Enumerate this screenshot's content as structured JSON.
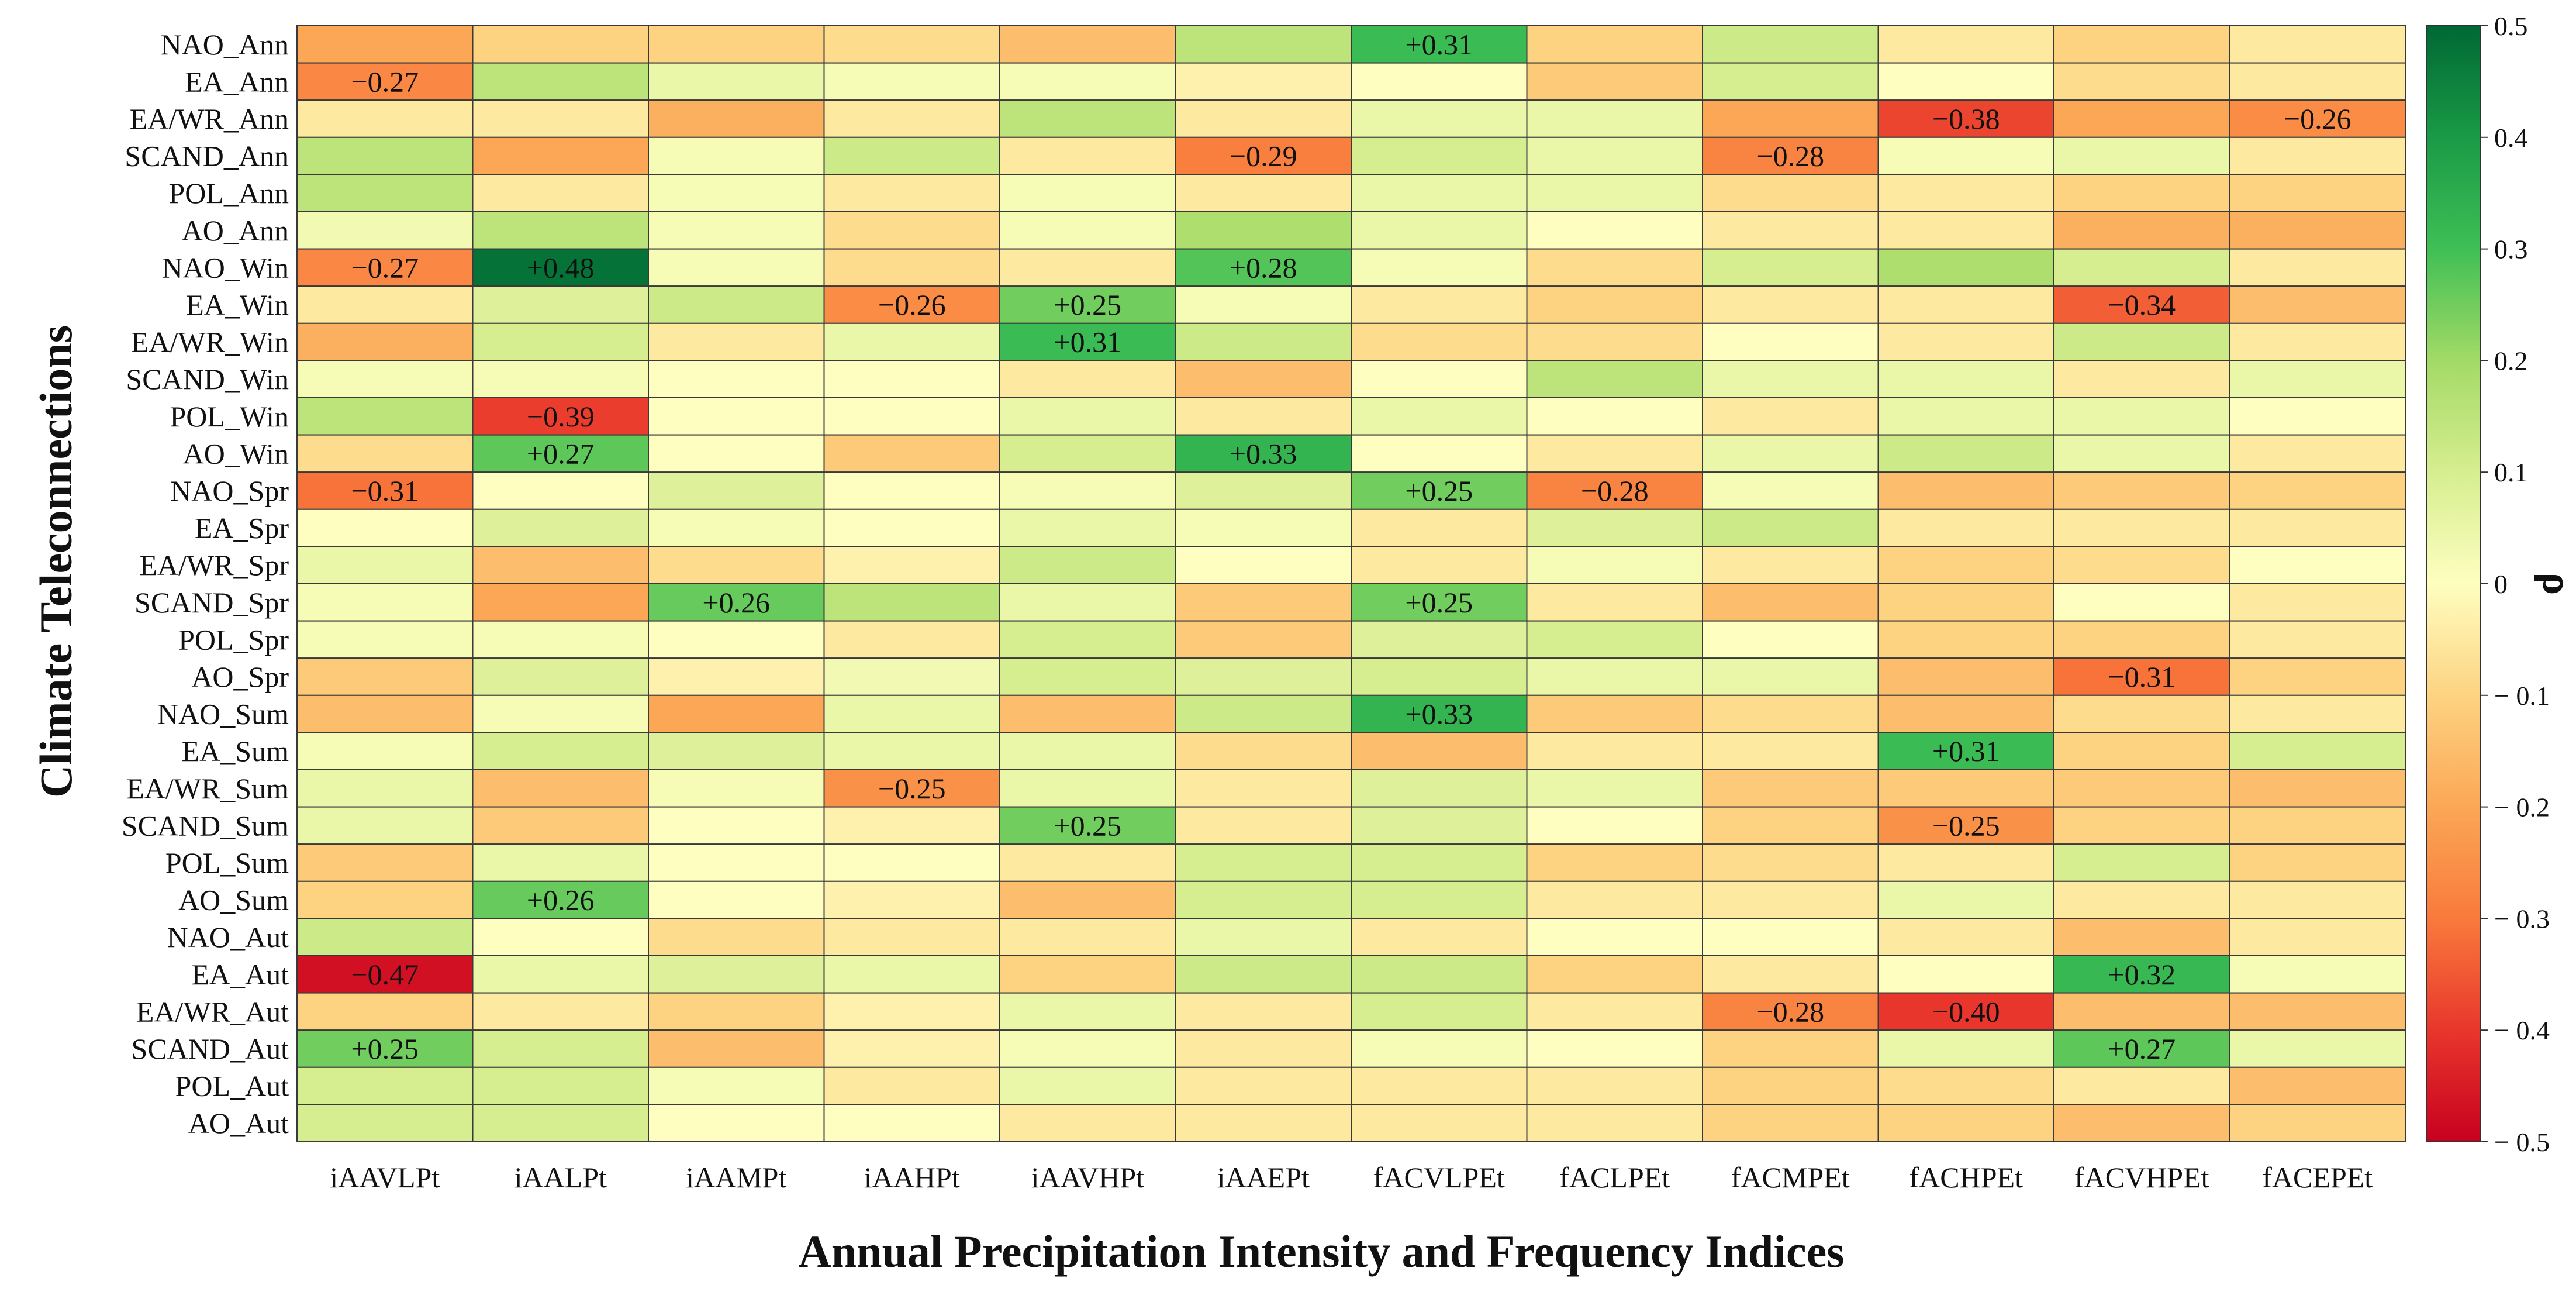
{
  "chart_data": {
    "type": "heatmap",
    "xlabel": "Annual Precipitation Intensity and Frequency Indices",
    "ylabel": "Climate Teleconnections",
    "colorbar_label": "ρ",
    "colorbar_range": [
      -0.5,
      0.5
    ],
    "colorbar_ticks": [
      0.5,
      0.4,
      0.3,
      0.2,
      0.1,
      0,
      -0.1,
      -0.2,
      -0.3,
      -0.4,
      -0.5
    ],
    "colorbar_tick_labels": [
      "0.5",
      "0.4",
      "0.3",
      "0.2",
      "0.1",
      "0",
      "− 0.1",
      "− 0.2",
      "− 0.3",
      "− 0.4",
      "− 0.5"
    ],
    "x_categories": [
      "iAAVLPt",
      "iAALPt",
      "iAAMPt",
      "iAAHPt",
      "iAAVHPt",
      "iAAEPt",
      "fACVLPEt",
      "fACLPEt",
      "fACMPEt",
      "fACHPEt",
      "fACVHPEt",
      "fACEPEt"
    ],
    "y_categories": [
      "NAO_Ann",
      "EA_Ann",
      "EA/WR_Ann",
      "SCAND_Ann",
      "POL_Ann",
      "AO_Ann",
      "NAO_Win",
      "EA_Win",
      "EA/WR_Win",
      "SCAND_Win",
      "POL_Win",
      "AO_Win",
      "NAO_Spr",
      "EA_Spr",
      "EA/WR_Spr",
      "SCAND_Spr",
      "POL_Spr",
      "AO_Spr",
      "NAO_Sum",
      "EA_Sum",
      "EA/WR_Sum",
      "SCAND_Sum",
      "POL_Sum",
      "AO_Sum",
      "NAO_Aut",
      "EA_Aut",
      "EA/WR_Aut",
      "SCAND_Aut",
      "POL_Aut",
      "AO_Aut"
    ],
    "values": [
      [
        -0.2,
        -0.1,
        -0.1,
        -0.08,
        -0.15,
        0.15,
        0.31,
        -0.1,
        0.12,
        -0.05,
        -0.1,
        -0.05
      ],
      [
        -0.27,
        0.15,
        0.05,
        0.02,
        0.02,
        -0.03,
        0.0,
        -0.12,
        0.1,
        0.0,
        -0.08,
        -0.05
      ],
      [
        -0.05,
        -0.05,
        -0.18,
        -0.05,
        0.15,
        -0.05,
        0.05,
        0.05,
        -0.2,
        -0.38,
        -0.2,
        -0.26
      ],
      [
        0.15,
        -0.2,
        0.02,
        0.12,
        -0.05,
        -0.29,
        0.1,
        0.05,
        -0.28,
        0.02,
        0.05,
        -0.05
      ],
      [
        0.15,
        -0.05,
        0.02,
        -0.05,
        0.02,
        -0.05,
        0.05,
        0.05,
        -0.08,
        -0.05,
        -0.1,
        -0.1
      ],
      [
        0.03,
        0.15,
        0.02,
        -0.08,
        0.02,
        0.18,
        0.05,
        0.0,
        -0.05,
        -0.05,
        -0.18,
        -0.18
      ],
      [
        -0.27,
        0.48,
        0.02,
        -0.08,
        -0.05,
        0.28,
        0.02,
        -0.08,
        0.1,
        0.18,
        0.1,
        -0.05
      ],
      [
        -0.05,
        0.08,
        0.12,
        -0.26,
        0.25,
        0.02,
        -0.05,
        -0.1,
        -0.05,
        -0.05,
        -0.34,
        -0.15
      ],
      [
        -0.18,
        0.1,
        -0.05,
        0.05,
        0.31,
        0.12,
        -0.08,
        -0.08,
        0.0,
        -0.05,
        0.12,
        -0.05
      ],
      [
        0.02,
        0.02,
        0.0,
        0.0,
        -0.05,
        -0.15,
        0.0,
        0.15,
        0.05,
        0.05,
        -0.05,
        0.05
      ],
      [
        0.15,
        -0.39,
        0.0,
        0.0,
        0.05,
        -0.05,
        0.05,
        0.0,
        -0.05,
        0.05,
        0.05,
        0.0
      ],
      [
        -0.08,
        0.27,
        0.0,
        -0.12,
        0.1,
        0.33,
        0.0,
        -0.05,
        0.05,
        0.12,
        0.05,
        -0.05
      ],
      [
        -0.31,
        0.0,
        0.08,
        0.0,
        0.02,
        0.08,
        0.25,
        -0.28,
        0.02,
        -0.15,
        -0.12,
        -0.1
      ],
      [
        0.0,
        0.08,
        0.02,
        0.0,
        0.05,
        0.02,
        -0.05,
        0.08,
        0.12,
        -0.05,
        -0.05,
        -0.05
      ],
      [
        0.05,
        -0.15,
        -0.08,
        -0.03,
        0.12,
        0.0,
        -0.05,
        0.02,
        -0.05,
        -0.1,
        -0.08,
        0.0
      ],
      [
        0.02,
        -0.2,
        0.26,
        0.15,
        0.05,
        -0.12,
        0.25,
        -0.05,
        -0.15,
        -0.1,
        0.0,
        -0.05
      ],
      [
        0.02,
        0.02,
        0.0,
        -0.05,
        0.1,
        -0.12,
        0.08,
        0.1,
        0.0,
        -0.1,
        -0.1,
        -0.05
      ],
      [
        -0.12,
        0.08,
        -0.03,
        0.03,
        0.1,
        0.08,
        0.1,
        0.05,
        0.05,
        -0.15,
        -0.31,
        -0.1
      ],
      [
        -0.15,
        0.02,
        -0.2,
        0.05,
        -0.15,
        0.12,
        0.33,
        -0.12,
        -0.08,
        -0.15,
        -0.08,
        -0.05
      ],
      [
        0.02,
        0.1,
        0.08,
        0.05,
        0.05,
        -0.08,
        -0.15,
        -0.05,
        -0.05,
        0.31,
        -0.1,
        0.1
      ],
      [
        0.05,
        -0.15,
        0.02,
        -0.25,
        0.05,
        -0.05,
        0.08,
        0.05,
        -0.12,
        -0.12,
        -0.12,
        -0.15
      ],
      [
        0.05,
        -0.12,
        0.0,
        -0.03,
        0.25,
        -0.05,
        0.08,
        0.0,
        -0.1,
        -0.25,
        -0.1,
        -0.1
      ],
      [
        -0.12,
        0.05,
        0.0,
        0.0,
        -0.05,
        0.1,
        0.1,
        -0.1,
        -0.08,
        -0.05,
        0.1,
        -0.1
      ],
      [
        -0.1,
        0.26,
        0.0,
        -0.03,
        -0.15,
        0.1,
        0.1,
        -0.05,
        -0.05,
        0.05,
        -0.05,
        -0.05
      ],
      [
        0.12,
        0.0,
        -0.08,
        -0.05,
        -0.05,
        0.05,
        -0.05,
        0.0,
        0.0,
        -0.05,
        -0.15,
        -0.05
      ],
      [
        -0.47,
        0.05,
        0.08,
        0.05,
        -0.1,
        0.12,
        0.12,
        -0.1,
        -0.05,
        0.0,
        0.32,
        0.02
      ],
      [
        -0.1,
        -0.05,
        -0.1,
        -0.03,
        0.05,
        -0.05,
        0.1,
        -0.05,
        -0.28,
        -0.4,
        -0.15,
        -0.15
      ],
      [
        0.25,
        0.1,
        -0.15,
        -0.03,
        0.02,
        -0.05,
        0.02,
        0.0,
        -0.1,
        0.05,
        0.27,
        0.05
      ],
      [
        0.1,
        0.1,
        0.02,
        -0.05,
        0.05,
        -0.05,
        -0.05,
        -0.05,
        -0.1,
        -0.08,
        -0.05,
        -0.15
      ],
      [
        0.1,
        0.1,
        0.0,
        0.0,
        -0.05,
        -0.05,
        -0.05,
        -0.05,
        -0.1,
        -0.1,
        -0.15,
        -0.1
      ]
    ],
    "annotations": [
      {
        "row": 0,
        "col": 6,
        "text": "+0.31"
      },
      {
        "row": 1,
        "col": 0,
        "text": "−0.27"
      },
      {
        "row": 2,
        "col": 9,
        "text": "−0.38"
      },
      {
        "row": 2,
        "col": 11,
        "text": "−0.26"
      },
      {
        "row": 3,
        "col": 5,
        "text": "−0.29"
      },
      {
        "row": 3,
        "col": 8,
        "text": "−0.28"
      },
      {
        "row": 6,
        "col": 0,
        "text": "−0.27"
      },
      {
        "row": 6,
        "col": 1,
        "text": "+0.48"
      },
      {
        "row": 6,
        "col": 5,
        "text": "+0.28"
      },
      {
        "row": 7,
        "col": 3,
        "text": "−0.26"
      },
      {
        "row": 7,
        "col": 4,
        "text": "+0.25"
      },
      {
        "row": 7,
        "col": 10,
        "text": "−0.34"
      },
      {
        "row": 8,
        "col": 4,
        "text": "+0.31"
      },
      {
        "row": 10,
        "col": 1,
        "text": "−0.39"
      },
      {
        "row": 11,
        "col": 1,
        "text": "+0.27"
      },
      {
        "row": 11,
        "col": 5,
        "text": "+0.33"
      },
      {
        "row": 12,
        "col": 0,
        "text": "−0.31"
      },
      {
        "row": 12,
        "col": 6,
        "text": "+0.25"
      },
      {
        "row": 12,
        "col": 7,
        "text": "−0.28"
      },
      {
        "row": 15,
        "col": 2,
        "text": "+0.26"
      },
      {
        "row": 15,
        "col": 6,
        "text": "+0.25"
      },
      {
        "row": 17,
        "col": 10,
        "text": "−0.31"
      },
      {
        "row": 18,
        "col": 6,
        "text": "+0.33"
      },
      {
        "row": 19,
        "col": 9,
        "text": "+0.31"
      },
      {
        "row": 20,
        "col": 3,
        "text": "−0.25"
      },
      {
        "row": 21,
        "col": 4,
        "text": "+0.25"
      },
      {
        "row": 21,
        "col": 9,
        "text": "−0.25"
      },
      {
        "row": 23,
        "col": 1,
        "text": "+0.26"
      },
      {
        "row": 25,
        "col": 0,
        "text": "−0.47"
      },
      {
        "row": 25,
        "col": 10,
        "text": "+0.32"
      },
      {
        "row": 26,
        "col": 8,
        "text": "−0.28"
      },
      {
        "row": 26,
        "col": 9,
        "text": "−0.40"
      },
      {
        "row": 27,
        "col": 0,
        "text": "+0.25"
      },
      {
        "row": 27,
        "col": 10,
        "text": "+0.27"
      }
    ]
  }
}
